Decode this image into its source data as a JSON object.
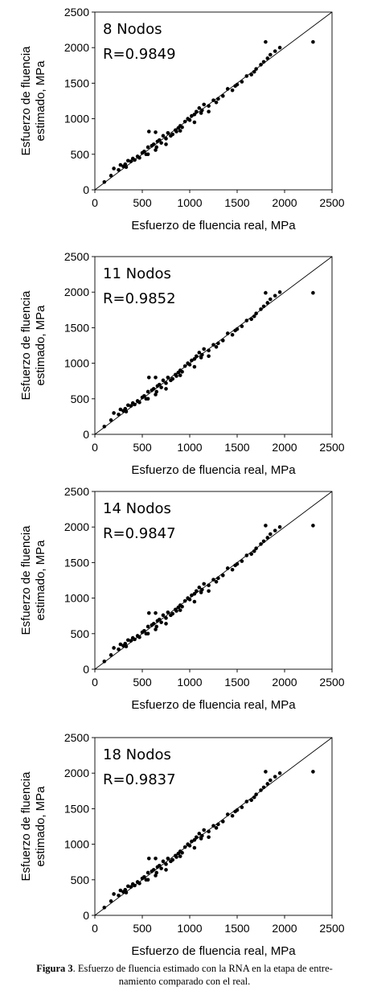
{
  "caption": {
    "label": "Figura 3",
    "text": ". Esfuerzo de fluencia estimado con la RNA en la etapa de entre-",
    "text2": "namiento comparado con el real."
  },
  "chart_data": [
    {
      "type": "scatter",
      "annotation": [
        "8 Nodos",
        "R=0.9849"
      ],
      "xlabel": "Esfuerzo de fluencia real, MPa",
      "ylabel": [
        "Esfuerzo de fluencia",
        "estimado, MPa"
      ],
      "xlim": [
        0,
        2500
      ],
      "ylim": [
        0,
        2500
      ],
      "xticks": [
        0,
        500,
        1000,
        1500,
        2000,
        2500
      ],
      "yticks": [
        0,
        500,
        1000,
        1500,
        2000,
        2500
      ],
      "reference_line": [
        [
          0,
          0
        ],
        [
          2500,
          2500
        ]
      ],
      "points": [
        [
          100,
          110
        ],
        [
          170,
          200
        ],
        [
          200,
          300
        ],
        [
          250,
          280
        ],
        [
          270,
          350
        ],
        [
          300,
          330
        ],
        [
          320,
          360
        ],
        [
          350,
          410
        ],
        [
          380,
          400
        ],
        [
          400,
          440
        ],
        [
          420,
          420
        ],
        [
          450,
          470
        ],
        [
          470,
          450
        ],
        [
          500,
          520
        ],
        [
          520,
          540
        ],
        [
          540,
          500
        ],
        [
          560,
          600
        ],
        [
          570,
          820
        ],
        [
          600,
          620
        ],
        [
          620,
          640
        ],
        [
          650,
          600
        ],
        [
          660,
          680
        ],
        [
          680,
          700
        ],
        [
          700,
          660
        ],
        [
          720,
          760
        ],
        [
          750,
          720
        ],
        [
          770,
          800
        ],
        [
          800,
          760
        ],
        [
          820,
          780
        ],
        [
          850,
          840
        ],
        [
          880,
          870
        ],
        [
          900,
          900
        ],
        [
          920,
          880
        ],
        [
          950,
          960
        ],
        [
          980,
          1000
        ],
        [
          1000,
          980
        ],
        [
          1020,
          1040
        ],
        [
          1050,
          1060
        ],
        [
          1070,
          1100
        ],
        [
          1100,
          1150
        ],
        [
          1130,
          1120
        ],
        [
          1150,
          1200
        ],
        [
          1200,
          1180
        ],
        [
          1250,
          1260
        ],
        [
          1300,
          1280
        ],
        [
          1350,
          1320
        ],
        [
          1400,
          1420
        ],
        [
          1450,
          1400
        ],
        [
          1500,
          1480
        ],
        [
          1550,
          1520
        ],
        [
          1600,
          1600
        ],
        [
          1650,
          1620
        ],
        [
          1700,
          1700
        ],
        [
          1750,
          1760
        ],
        [
          1780,
          1800
        ],
        [
          1800,
          2080
        ],
        [
          1820,
          1850
        ],
        [
          1850,
          1900
        ],
        [
          1900,
          1950
        ],
        [
          1950,
          2000
        ],
        [
          2300,
          2080
        ],
        [
          640,
          810
        ],
        [
          750,
          640
        ],
        [
          900,
          830
        ],
        [
          1050,
          950
        ],
        [
          1200,
          1100
        ],
        [
          330,
          320
        ],
        [
          560,
          500
        ],
        [
          640,
          560
        ],
        [
          860,
          820
        ],
        [
          1120,
          1080
        ],
        [
          1280,
          1230
        ],
        [
          1480,
          1460
        ],
        [
          1680,
          1660
        ]
      ]
    },
    {
      "type": "scatter",
      "annotation": [
        "11 Nodos",
        "R=0.9852"
      ],
      "xlabel": "Esfuerzo de fluencia real, MPa",
      "ylabel": [
        "Esfuerzo de fluencia",
        "estimado, MPa"
      ],
      "xlim": [
        0,
        2500
      ],
      "ylim": [
        0,
        2500
      ],
      "xticks": [
        0,
        500,
        1000,
        1500,
        2000,
        2500
      ],
      "yticks": [
        0,
        500,
        1000,
        1500,
        2000,
        2500
      ],
      "reference_line": [
        [
          0,
          0
        ],
        [
          2500,
          2500
        ]
      ],
      "points": [
        [
          100,
          110
        ],
        [
          170,
          200
        ],
        [
          200,
          300
        ],
        [
          250,
          280
        ],
        [
          270,
          350
        ],
        [
          300,
          330
        ],
        [
          320,
          360
        ],
        [
          350,
          410
        ],
        [
          380,
          400
        ],
        [
          400,
          440
        ],
        [
          420,
          420
        ],
        [
          450,
          470
        ],
        [
          470,
          450
        ],
        [
          500,
          520
        ],
        [
          520,
          540
        ],
        [
          540,
          500
        ],
        [
          560,
          600
        ],
        [
          570,
          800
        ],
        [
          600,
          620
        ],
        [
          620,
          640
        ],
        [
          650,
          600
        ],
        [
          660,
          680
        ],
        [
          680,
          700
        ],
        [
          700,
          660
        ],
        [
          720,
          760
        ],
        [
          750,
          720
        ],
        [
          770,
          800
        ],
        [
          800,
          760
        ],
        [
          820,
          780
        ],
        [
          850,
          840
        ],
        [
          880,
          870
        ],
        [
          900,
          900
        ],
        [
          920,
          880
        ],
        [
          950,
          960
        ],
        [
          980,
          1000
        ],
        [
          1000,
          980
        ],
        [
          1020,
          1040
        ],
        [
          1050,
          1060
        ],
        [
          1070,
          1100
        ],
        [
          1100,
          1150
        ],
        [
          1130,
          1120
        ],
        [
          1150,
          1200
        ],
        [
          1200,
          1180
        ],
        [
          1250,
          1260
        ],
        [
          1300,
          1280
        ],
        [
          1350,
          1320
        ],
        [
          1400,
          1420
        ],
        [
          1450,
          1400
        ],
        [
          1500,
          1480
        ],
        [
          1550,
          1520
        ],
        [
          1600,
          1600
        ],
        [
          1650,
          1620
        ],
        [
          1700,
          1700
        ],
        [
          1750,
          1760
        ],
        [
          1780,
          1800
        ],
        [
          1800,
          1990
        ],
        [
          1820,
          1850
        ],
        [
          1850,
          1900
        ],
        [
          1900,
          1950
        ],
        [
          1950,
          2000
        ],
        [
          2300,
          1990
        ],
        [
          640,
          800
        ],
        [
          750,
          640
        ],
        [
          900,
          830
        ],
        [
          1050,
          950
        ],
        [
          1200,
          1100
        ],
        [
          330,
          320
        ],
        [
          560,
          500
        ],
        [
          640,
          560
        ],
        [
          860,
          820
        ],
        [
          1120,
          1080
        ],
        [
          1280,
          1230
        ],
        [
          1480,
          1460
        ],
        [
          1680,
          1660
        ]
      ]
    },
    {
      "type": "scatter",
      "annotation": [
        "14 Nodos",
        "R=0.9847"
      ],
      "xlabel": "Esfuerzo de fluencia real, MPa",
      "ylabel": [
        "Esfuerzo de fluencia",
        "estimado, MPa"
      ],
      "xlim": [
        0,
        2500
      ],
      "ylim": [
        0,
        2500
      ],
      "xticks": [
        0,
        500,
        1000,
        1500,
        2000,
        2500
      ],
      "yticks": [
        0,
        500,
        1000,
        1500,
        2000,
        2500
      ],
      "reference_line": [
        [
          0,
          0
        ],
        [
          2500,
          2500
        ]
      ],
      "points": [
        [
          100,
          110
        ],
        [
          170,
          200
        ],
        [
          200,
          300
        ],
        [
          250,
          280
        ],
        [
          270,
          350
        ],
        [
          300,
          330
        ],
        [
          320,
          360
        ],
        [
          350,
          410
        ],
        [
          380,
          400
        ],
        [
          400,
          440
        ],
        [
          420,
          420
        ],
        [
          450,
          470
        ],
        [
          470,
          450
        ],
        [
          500,
          520
        ],
        [
          520,
          540
        ],
        [
          540,
          500
        ],
        [
          560,
          600
        ],
        [
          570,
          790
        ],
        [
          600,
          620
        ],
        [
          620,
          640
        ],
        [
          650,
          600
        ],
        [
          660,
          680
        ],
        [
          680,
          700
        ],
        [
          700,
          660
        ],
        [
          720,
          760
        ],
        [
          750,
          720
        ],
        [
          770,
          800
        ],
        [
          800,
          760
        ],
        [
          820,
          780
        ],
        [
          850,
          840
        ],
        [
          880,
          870
        ],
        [
          900,
          900
        ],
        [
          920,
          880
        ],
        [
          950,
          960
        ],
        [
          980,
          1000
        ],
        [
          1000,
          980
        ],
        [
          1020,
          1040
        ],
        [
          1050,
          1060
        ],
        [
          1070,
          1100
        ],
        [
          1100,
          1150
        ],
        [
          1130,
          1120
        ],
        [
          1150,
          1200
        ],
        [
          1200,
          1180
        ],
        [
          1250,
          1260
        ],
        [
          1300,
          1280
        ],
        [
          1350,
          1320
        ],
        [
          1400,
          1420
        ],
        [
          1450,
          1400
        ],
        [
          1500,
          1480
        ],
        [
          1550,
          1520
        ],
        [
          1600,
          1600
        ],
        [
          1650,
          1620
        ],
        [
          1700,
          1700
        ],
        [
          1750,
          1760
        ],
        [
          1780,
          1800
        ],
        [
          1800,
          2020
        ],
        [
          1820,
          1850
        ],
        [
          1850,
          1900
        ],
        [
          1900,
          1950
        ],
        [
          1950,
          2000
        ],
        [
          2300,
          2020
        ],
        [
          640,
          790
        ],
        [
          750,
          640
        ],
        [
          900,
          830
        ],
        [
          1050,
          950
        ],
        [
          1200,
          1100
        ],
        [
          330,
          320
        ],
        [
          560,
          500
        ],
        [
          640,
          560
        ],
        [
          860,
          820
        ],
        [
          1120,
          1080
        ],
        [
          1280,
          1230
        ],
        [
          1480,
          1460
        ],
        [
          1680,
          1660
        ]
      ]
    },
    {
      "type": "scatter",
      "annotation": [
        "18 Nodos",
        "R=0.9837"
      ],
      "xlabel": "Esfuerzo de fluencia real, MPa",
      "ylabel": [
        "Esfuerzo de fluencia",
        "estimado, MPa"
      ],
      "xlim": [
        0,
        2500
      ],
      "ylim": [
        0,
        2500
      ],
      "xticks": [
        0,
        500,
        1000,
        1500,
        2000,
        2500
      ],
      "yticks": [
        0,
        500,
        1000,
        1500,
        2000,
        2500
      ],
      "reference_line": [
        [
          0,
          0
        ],
        [
          2500,
          2500
        ]
      ],
      "points": [
        [
          100,
          110
        ],
        [
          170,
          200
        ],
        [
          200,
          300
        ],
        [
          250,
          280
        ],
        [
          270,
          350
        ],
        [
          300,
          330
        ],
        [
          320,
          360
        ],
        [
          350,
          410
        ],
        [
          380,
          400
        ],
        [
          400,
          440
        ],
        [
          420,
          420
        ],
        [
          450,
          470
        ],
        [
          470,
          450
        ],
        [
          500,
          520
        ],
        [
          520,
          540
        ],
        [
          540,
          500
        ],
        [
          560,
          600
        ],
        [
          570,
          800
        ],
        [
          600,
          620
        ],
        [
          620,
          640
        ],
        [
          650,
          600
        ],
        [
          660,
          680
        ],
        [
          680,
          700
        ],
        [
          700,
          660
        ],
        [
          720,
          760
        ],
        [
          750,
          720
        ],
        [
          770,
          800
        ],
        [
          800,
          760
        ],
        [
          820,
          780
        ],
        [
          850,
          840
        ],
        [
          880,
          870
        ],
        [
          900,
          900
        ],
        [
          920,
          880
        ],
        [
          950,
          960
        ],
        [
          980,
          1000
        ],
        [
          1000,
          980
        ],
        [
          1020,
          1040
        ],
        [
          1050,
          1060
        ],
        [
          1070,
          1100
        ],
        [
          1100,
          1150
        ],
        [
          1130,
          1120
        ],
        [
          1150,
          1200
        ],
        [
          1200,
          1180
        ],
        [
          1250,
          1260
        ],
        [
          1300,
          1280
        ],
        [
          1350,
          1320
        ],
        [
          1400,
          1420
        ],
        [
          1450,
          1400
        ],
        [
          1500,
          1480
        ],
        [
          1550,
          1520
        ],
        [
          1600,
          1600
        ],
        [
          1650,
          1620
        ],
        [
          1700,
          1700
        ],
        [
          1750,
          1760
        ],
        [
          1780,
          1800
        ],
        [
          1800,
          2020
        ],
        [
          1820,
          1850
        ],
        [
          1850,
          1900
        ],
        [
          1900,
          1950
        ],
        [
          1950,
          2000
        ],
        [
          2300,
          2020
        ],
        [
          640,
          800
        ],
        [
          750,
          640
        ],
        [
          900,
          830
        ],
        [
          1050,
          950
        ],
        [
          1200,
          1100
        ],
        [
          330,
          320
        ],
        [
          560,
          500
        ],
        [
          640,
          560
        ],
        [
          860,
          820
        ],
        [
          1120,
          1080
        ],
        [
          1280,
          1230
        ],
        [
          1480,
          1460
        ],
        [
          1680,
          1660
        ]
      ]
    }
  ]
}
